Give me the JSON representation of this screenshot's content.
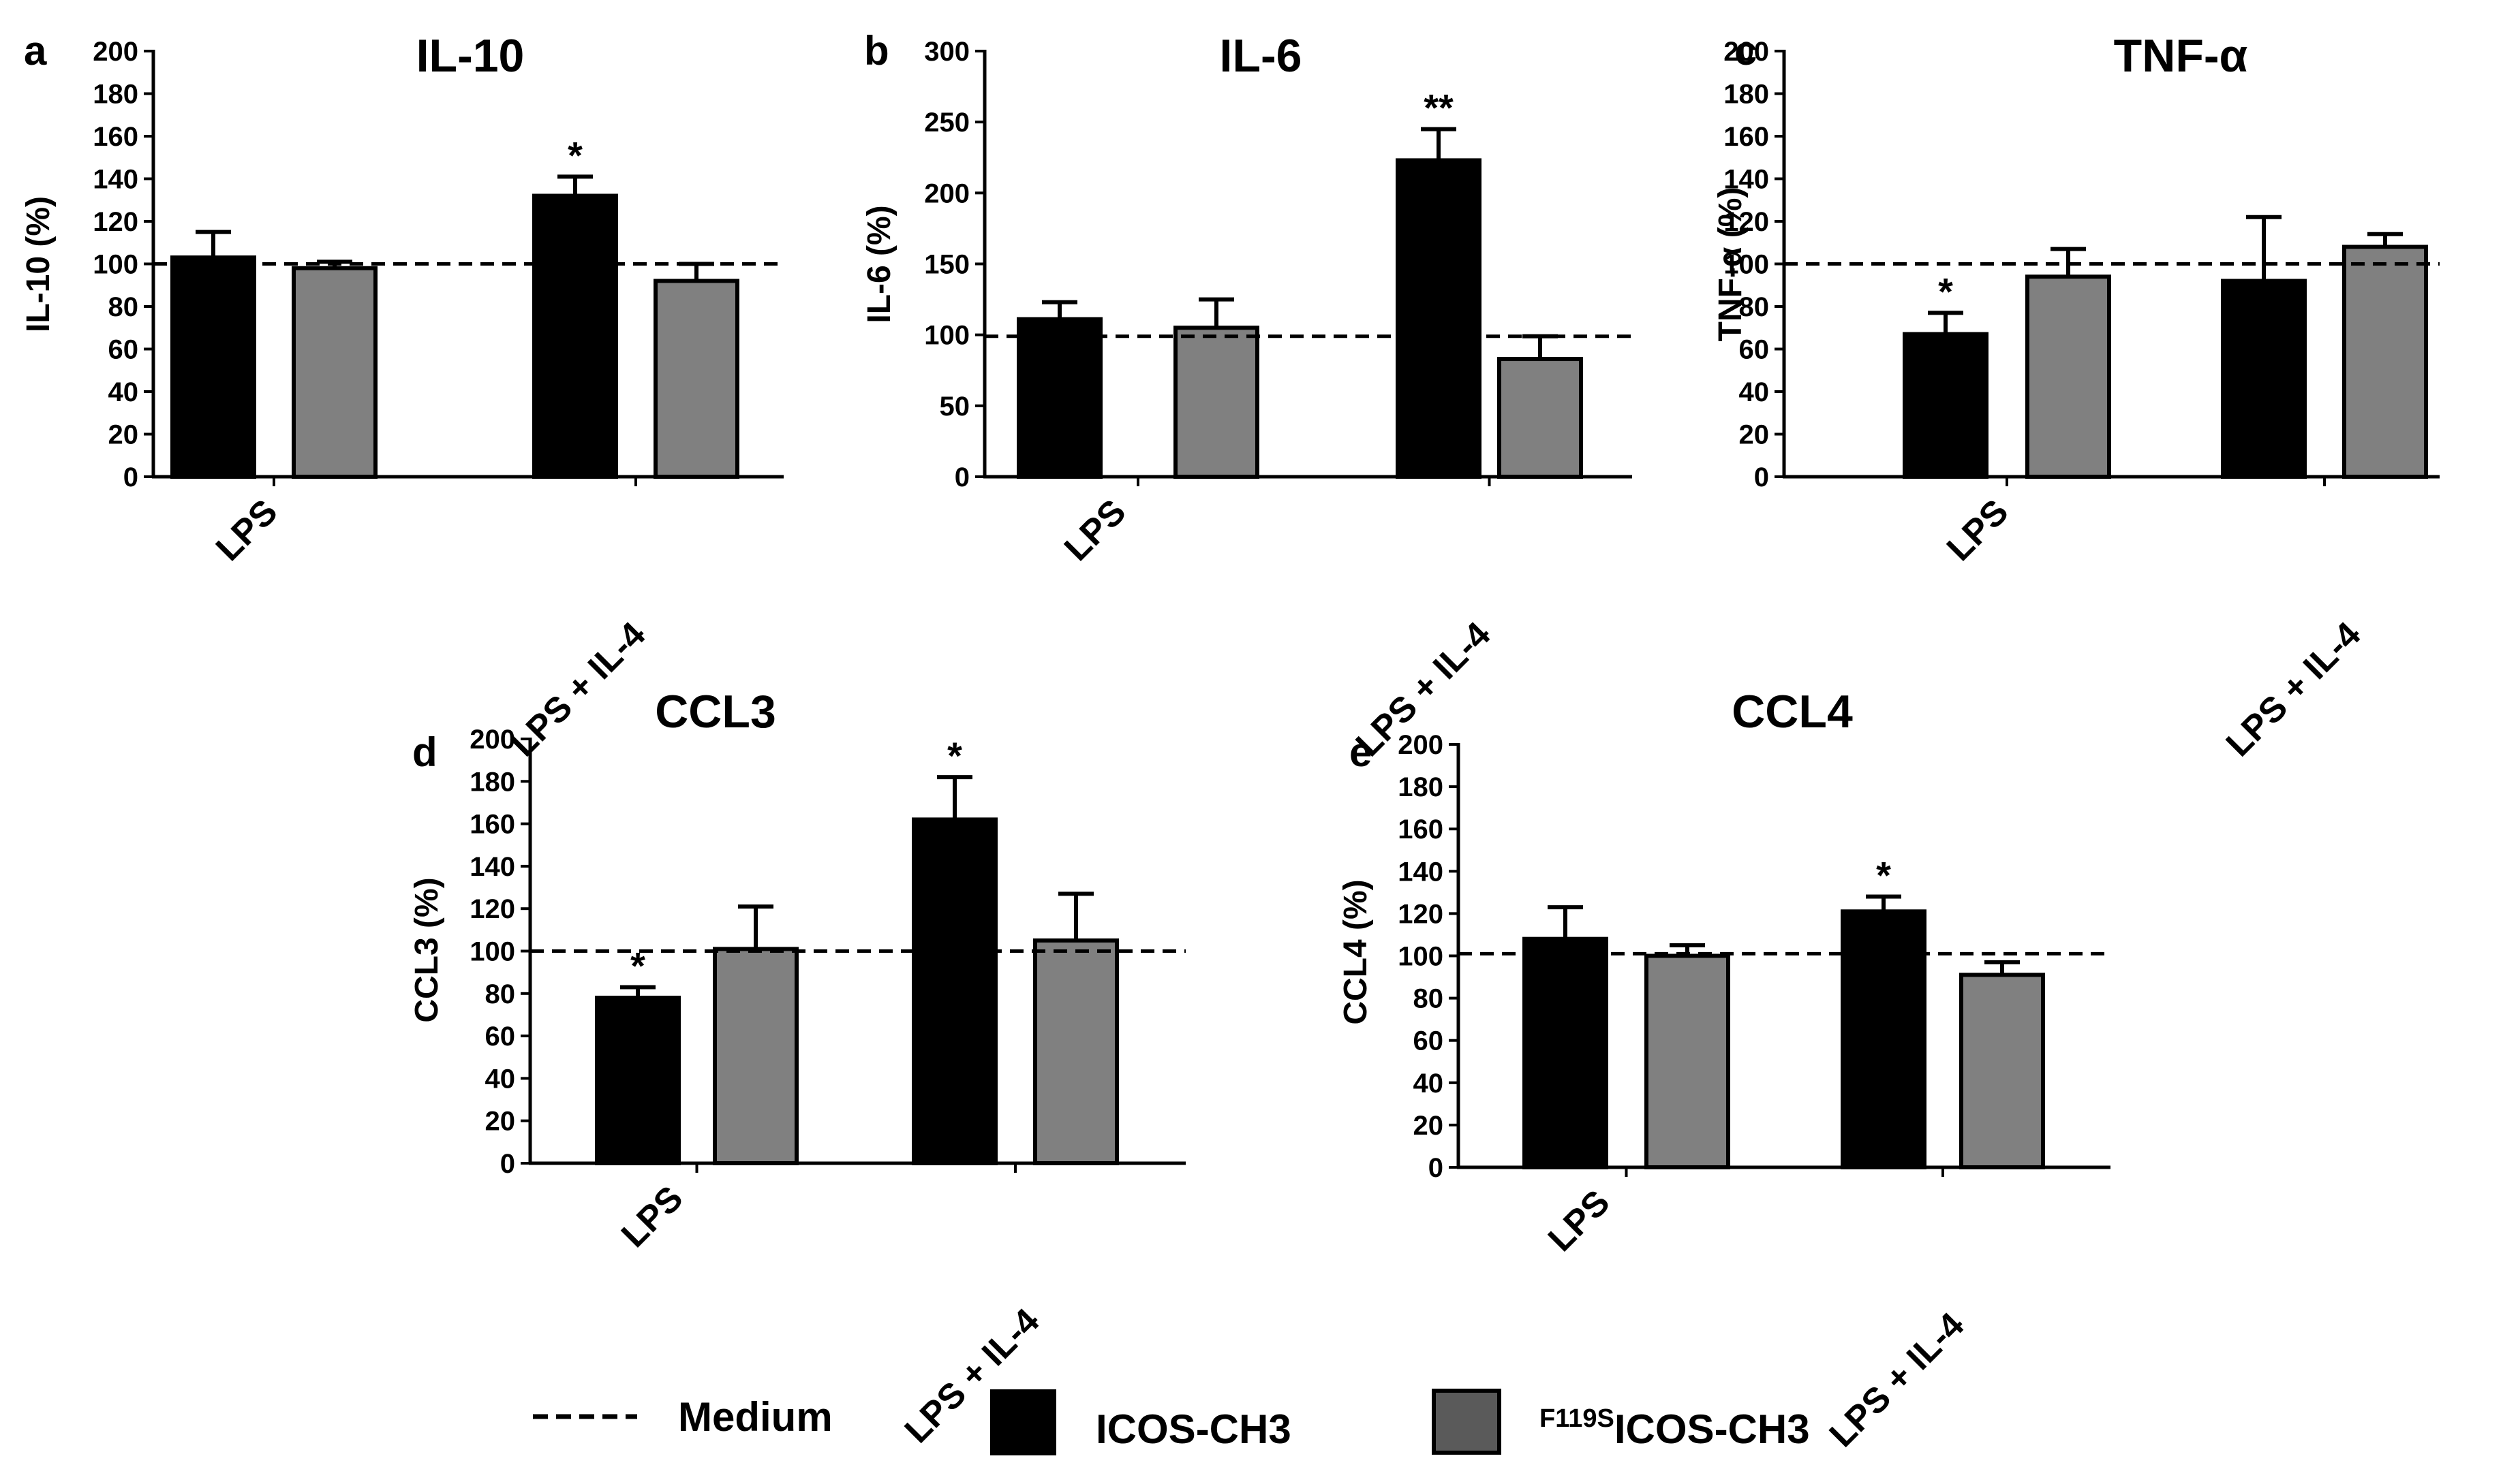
{
  "chart_data": [
    {
      "panel": "a",
      "type": "bar",
      "title": "IL-10",
      "xlabel": "",
      "ylabel": "IL-10 (%)",
      "ylim": [
        0,
        200
      ],
      "ytick_step": 20,
      "reference_line": 100,
      "categories": [
        "LPS",
        "LPS + IL-4"
      ],
      "series": [
        {
          "name": "ICOS-CH3",
          "values": [
            103,
            132
          ],
          "errors": [
            12,
            9
          ],
          "significance": [
            "",
            "*"
          ]
        },
        {
          "name": "F119SICOS-CH3",
          "values": [
            98,
            92
          ],
          "errors": [
            3,
            8
          ],
          "significance": [
            "",
            ""
          ]
        }
      ]
    },
    {
      "panel": "b",
      "type": "bar",
      "title": "IL-6",
      "xlabel": "",
      "ylabel": "IL-6 (%)",
      "ylim": [
        0,
        300
      ],
      "ytick_step": 50,
      "reference_line": 99,
      "categories": [
        "LPS",
        "LPS + IL-4"
      ],
      "series": [
        {
          "name": "ICOS-CH3",
          "values": [
            111,
            223
          ],
          "errors": [
            12,
            22
          ],
          "significance": [
            "",
            "**"
          ]
        },
        {
          "name": "F119SICOS-CH3",
          "values": [
            105,
            83
          ],
          "errors": [
            20,
            16
          ],
          "significance": [
            "",
            ""
          ]
        }
      ]
    },
    {
      "panel": "c",
      "type": "bar",
      "title": "TNF-α",
      "xlabel": "",
      "ylabel": "TNF-α (%)",
      "ylim": [
        0,
        200
      ],
      "ytick_step": 20,
      "reference_line": 100,
      "categories": [
        "LPS",
        "LPS + IL-4"
      ],
      "series": [
        {
          "name": "ICOS-CH3",
          "values": [
            67,
            92
          ],
          "errors": [
            10,
            30
          ],
          "significance": [
            "*",
            ""
          ]
        },
        {
          "name": "F119SICOS-CH3",
          "values": [
            94,
            108
          ],
          "errors": [
            13,
            6
          ],
          "significance": [
            "",
            ""
          ]
        }
      ]
    },
    {
      "panel": "d",
      "type": "bar",
      "title": "CCL3",
      "xlabel": "",
      "ylabel": "CCL3 (%)",
      "ylim": [
        0,
        200
      ],
      "ytick_step": 20,
      "reference_line": 100,
      "categories": [
        "LPS",
        "LPS + IL-4"
      ],
      "series": [
        {
          "name": "ICOS-CH3",
          "values": [
            78,
            162
          ],
          "errors": [
            5,
            20
          ],
          "significance": [
            "*",
            "*"
          ]
        },
        {
          "name": "F119SICOS-CH3",
          "values": [
            101,
            105
          ],
          "errors": [
            20,
            22
          ],
          "significance": [
            "",
            ""
          ]
        }
      ]
    },
    {
      "panel": "e",
      "type": "bar",
      "title": "CCL4",
      "xlabel": "",
      "ylabel": "CCL4 (%)",
      "ylim": [
        0,
        200
      ],
      "ytick_step": 20,
      "reference_line": 101,
      "categories": [
        "LPS",
        "LPS + IL-4"
      ],
      "series": [
        {
          "name": "ICOS-CH3",
          "values": [
            108,
            121
          ],
          "errors": [
            15,
            7
          ],
          "significance": [
            "",
            "*"
          ]
        },
        {
          "name": "F119SICOS-CH3",
          "values": [
            100,
            91
          ],
          "errors": [
            5,
            6
          ],
          "significance": [
            "",
            ""
          ]
        }
      ]
    }
  ],
  "legend": {
    "medium_label": "Medium",
    "icos_label": "ICOS-CH3",
    "f119s_prefix": "F119S",
    "f119s_label": "ICOS-CH3"
  },
  "colors": {
    "icos": "#000000",
    "f119s": "#808080",
    "legend_f119s": "#5a5a5a"
  }
}
